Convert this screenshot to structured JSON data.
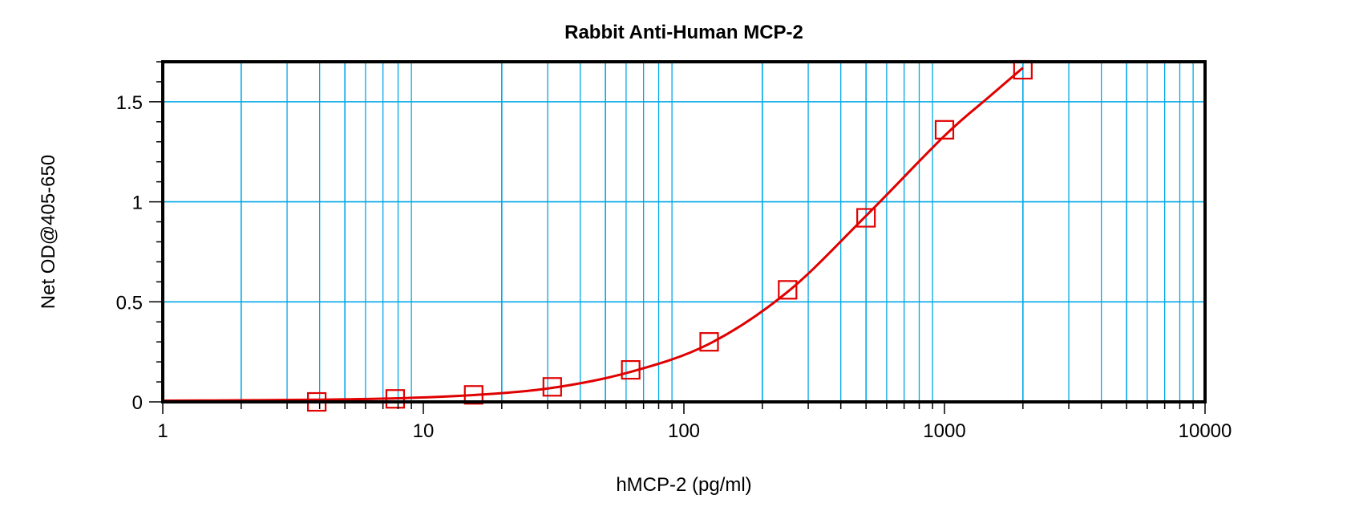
{
  "chart_data": {
    "type": "scatter",
    "title": "Rabbit Anti-Human MCP-2",
    "xlabel": "hMCP-2 (pg/ml)",
    "ylabel": "Net OD@405-650",
    "xscale": "log",
    "xlim": [
      1,
      10000
    ],
    "ylim": [
      0,
      1.7
    ],
    "xticks": [
      "1",
      "10",
      "100",
      "1000",
      "10000"
    ],
    "yticks": [
      "0",
      "0.5",
      "1",
      "1.5"
    ],
    "grid": true,
    "colors": {
      "grid": "#00a8e6",
      "series": "#e00000",
      "axis": "#000000"
    },
    "series": [
      {
        "marker": "square",
        "x": [
          3.9,
          7.8,
          15.6,
          31.25,
          62.5,
          125,
          250,
          500,
          1000,
          2000
        ],
        "y": [
          0.0,
          0.015,
          0.035,
          0.075,
          0.16,
          0.3,
          0.56,
          0.92,
          1.36,
          1.66
        ]
      }
    ],
    "fit_curve": {
      "x": [
        1,
        2,
        4,
        8,
        16,
        31.25,
        62.5,
        125,
        250,
        500,
        1000,
        1500,
        2000
      ],
      "y": [
        0.006,
        0.008,
        0.011,
        0.018,
        0.035,
        0.07,
        0.15,
        0.29,
        0.55,
        0.93,
        1.33,
        1.53,
        1.67
      ]
    }
  }
}
